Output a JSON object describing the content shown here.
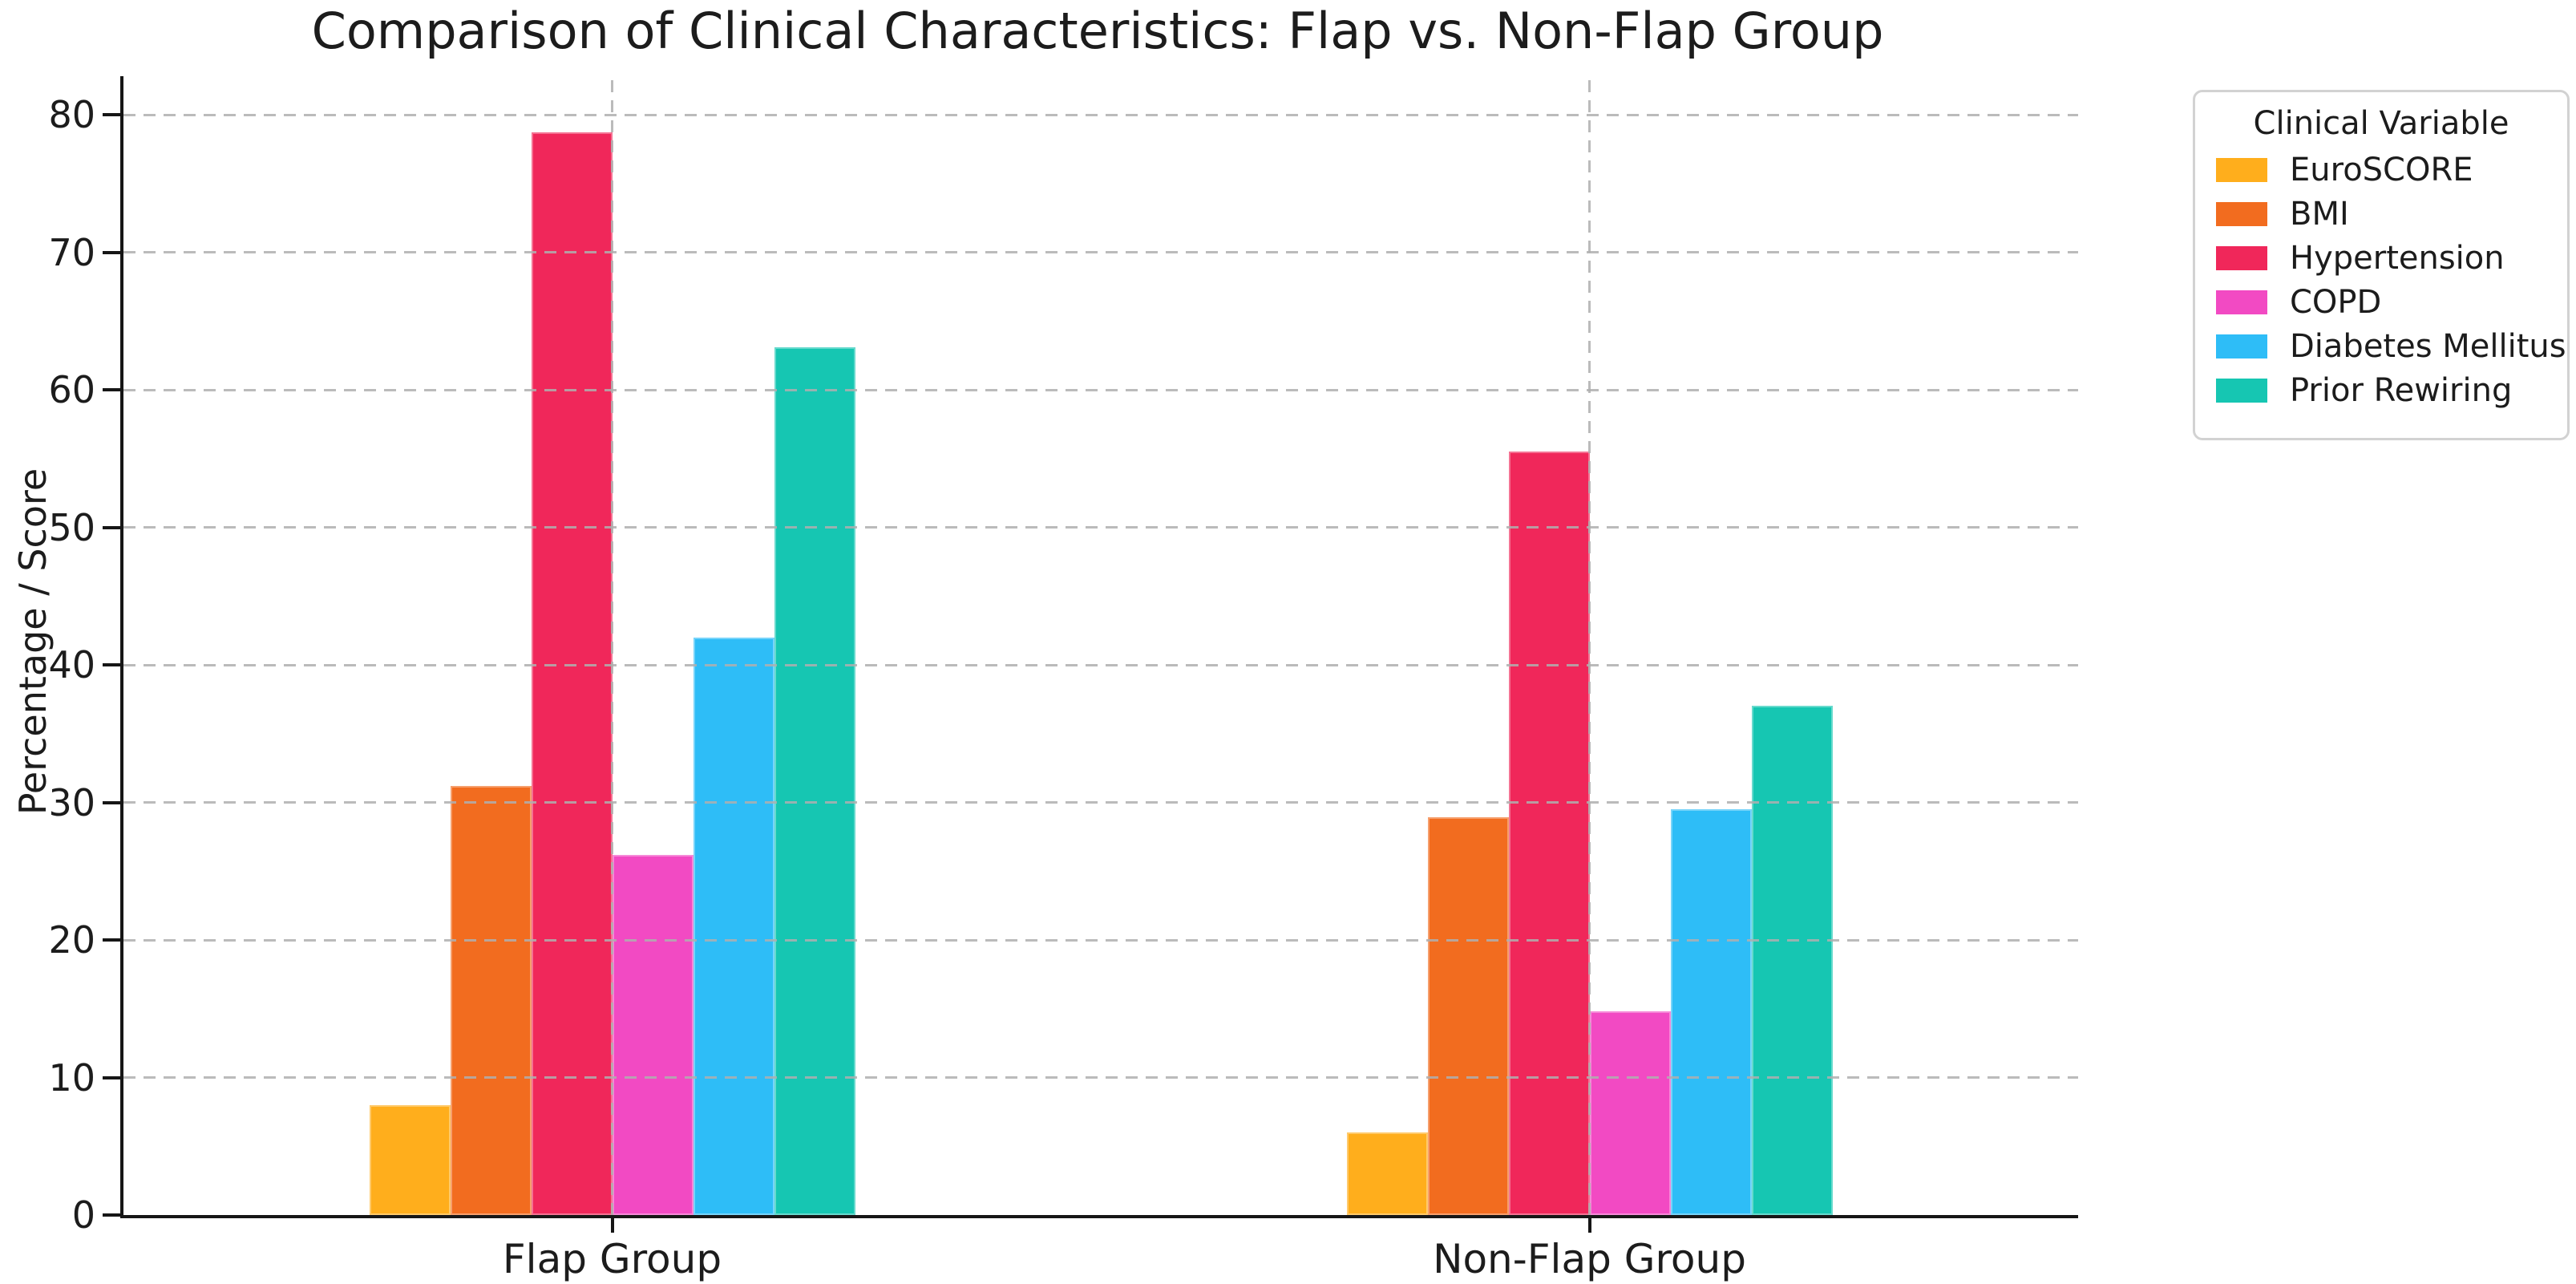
{
  "figure": {
    "title": "Comparison of Clinical Characteristics: Flap vs. Non-Flap Group",
    "ylabel": "Percentage / Score",
    "legend_title": "Clinical Variable"
  },
  "chart_data": {
    "type": "bar",
    "title": "Comparison of Clinical Characteristics: Flap vs. Non-Flap Group",
    "xlabel": "",
    "ylabel": "Percentage / Score",
    "categories": [
      "Flap Group",
      "Non-Flap Group"
    ],
    "series": [
      {
        "name": "EuroSCORE",
        "color": "#FFAE1C",
        "values": [
          8.0,
          6.0
        ]
      },
      {
        "name": "BMI",
        "color": "#F26C1F",
        "values": [
          31.2,
          28.9
        ]
      },
      {
        "name": "Hypertension",
        "color": "#F0275A",
        "values": [
          78.7,
          55.5
        ]
      },
      {
        "name": "COPD",
        "color": "#F24AC3",
        "values": [
          26.2,
          14.8
        ]
      },
      {
        "name": "Diabetes Mellitus",
        "color": "#2EBDF7",
        "values": [
          42.0,
          29.5
        ]
      },
      {
        "name": "Prior Rewiring",
        "color": "#16C6B2",
        "values": [
          63.1,
          37.0
        ]
      }
    ],
    "yticks": [
      0,
      10,
      20,
      30,
      40,
      50,
      60,
      70,
      80
    ],
    "ylim": [
      0,
      82.8
    ],
    "grid": "dashed gray horizontal lines at each ytick and dashed vertical lines at category centers, drawn over bars",
    "legend_title": "Clinical Variable",
    "legend_position": "upper right, outside plot"
  }
}
